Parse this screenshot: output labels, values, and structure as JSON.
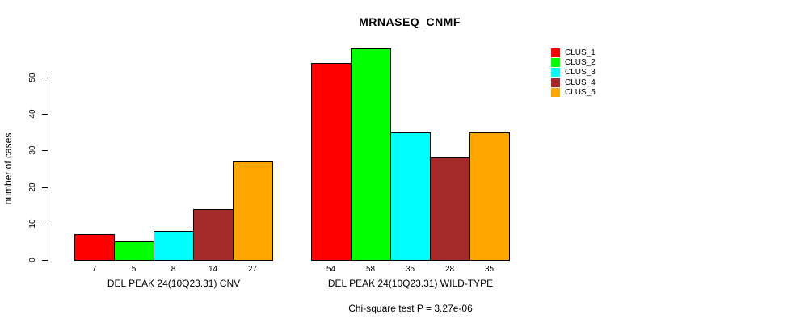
{
  "chart_data": {
    "type": "bar",
    "title": "MRNASEQ_CNMF",
    "ylabel": "number of cases",
    "xlabel": "",
    "ylim": [
      0,
      58
    ],
    "yticks": [
      0,
      10,
      20,
      30,
      40,
      50
    ],
    "grid": false,
    "legend_position": "right",
    "categories": [
      "DEL PEAK 24(10Q23.31) CNV",
      "DEL PEAK 24(10Q23.31) WILD-TYPE"
    ],
    "series": [
      {
        "name": "CLUS_1",
        "color": "#FF0000",
        "values": [
          7,
          54
        ]
      },
      {
        "name": "CLUS_2",
        "color": "#00FF00",
        "values": [
          5,
          58
        ]
      },
      {
        "name": "CLUS_3",
        "color": "#00FFFF",
        "values": [
          8,
          35
        ]
      },
      {
        "name": "CLUS_4",
        "color": "#A52A2A",
        "values": [
          14,
          28
        ]
      },
      {
        "name": "CLUS_5",
        "color": "#FFA500",
        "values": [
          27,
          35
        ]
      }
    ],
    "annotation": "Chi-square test P = 3.27e-06"
  }
}
